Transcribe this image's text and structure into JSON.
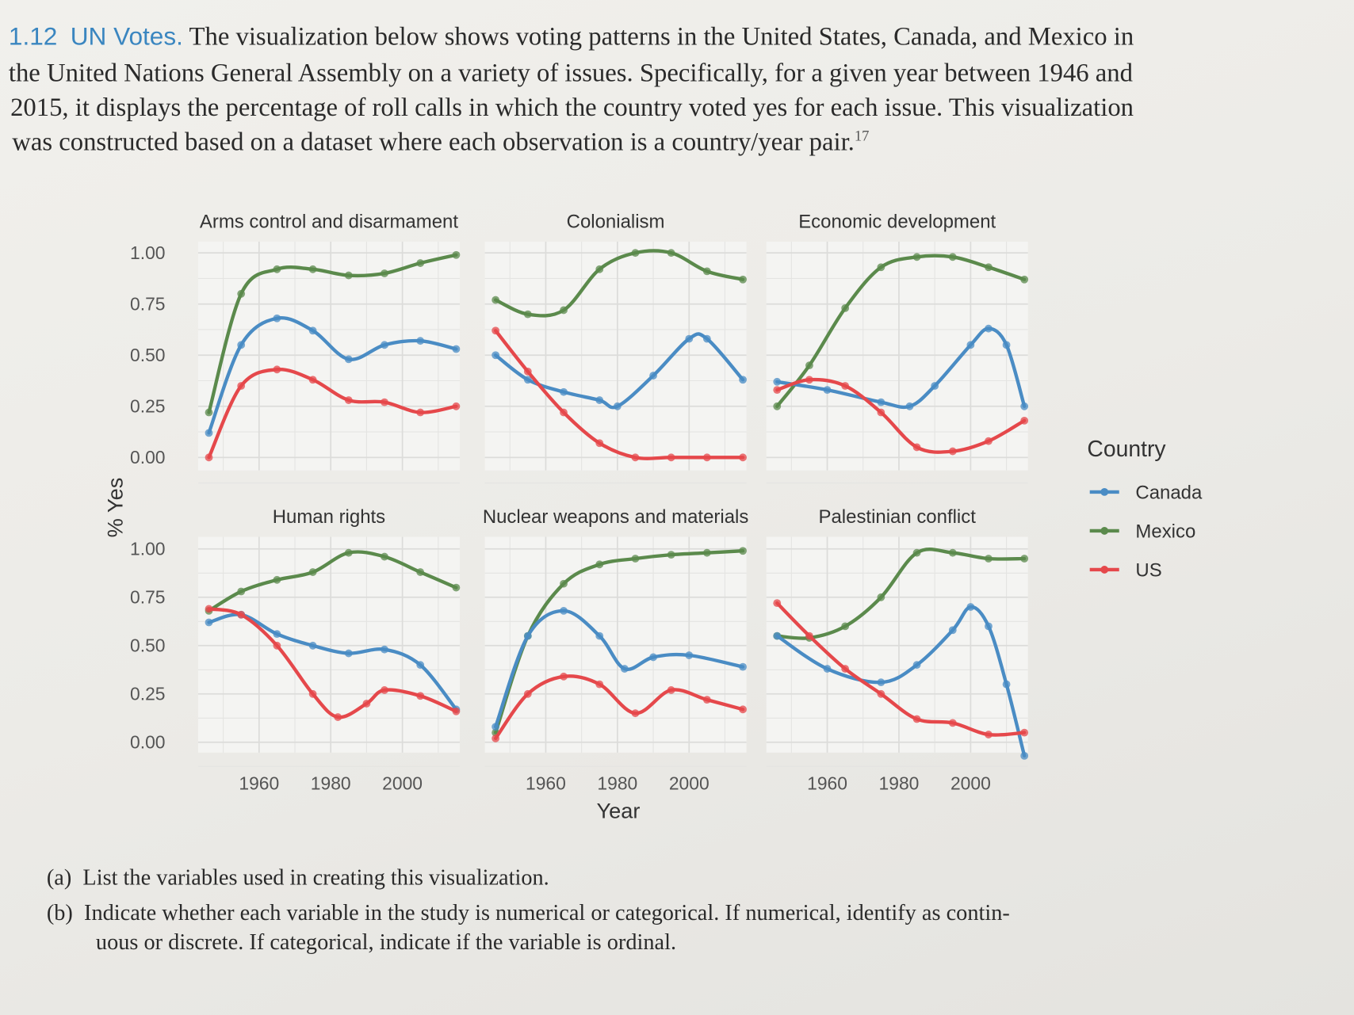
{
  "problem": {
    "number": "1.12",
    "title": "UN Votes.",
    "lines": [
      "The visualization below shows voting patterns in the United States, Canada, and Mexico in",
      "the United Nations General Assembly on a variety of issues. Specifically, for a given year between 1946 and",
      "2015, it displays the percentage of roll calls in which the country voted yes for each issue. This visualization",
      "was constructed based on a dataset where each observation is a country/year pair."
    ],
    "footnote": "17",
    "questions": [
      {
        "label": "(a)",
        "text": "List the variables used in creating this visualization."
      },
      {
        "label": "(b)",
        "text": "Indicate whether each variable in the study is numerical or categorical. If numerical, identify as contin-"
      },
      {
        "label": "",
        "text": "uous or discrete. If categorical, indicate if the variable is ordinal."
      }
    ]
  },
  "chart_data": {
    "type": "line",
    "xlabel": "Year",
    "ylabel": "% Yes",
    "xlim": [
      1943,
      2016
    ],
    "ylim": [
      0,
      1
    ],
    "x_ticks": [
      "1960",
      "1980",
      "2000"
    ],
    "y_ticks": [
      "0.00",
      "0.25",
      "0.50",
      "0.75",
      "1.00"
    ],
    "grid": true,
    "legend": {
      "title": "Country",
      "placement": "right",
      "entries": [
        "Canada",
        "Mexico",
        "US"
      ]
    },
    "colors": {
      "Canada": "#4a8cc4",
      "Mexico": "#5b8a4c",
      "US": "#e5484b"
    },
    "panels": [
      {
        "title": "Arms control and disarmament",
        "series": [
          {
            "name": "Mexico",
            "x": [
              1946,
              1955,
              1965,
              1975,
              1985,
              1995,
              2005,
              2015
            ],
            "y": [
              0.22,
              0.8,
              0.92,
              0.92,
              0.89,
              0.9,
              0.95,
              0.99
            ]
          },
          {
            "name": "Canada",
            "x": [
              1946,
              1955,
              1965,
              1975,
              1985,
              1995,
              2005,
              2015
            ],
            "y": [
              0.12,
              0.55,
              0.68,
              0.62,
              0.48,
              0.55,
              0.57,
              0.53
            ]
          },
          {
            "name": "US",
            "x": [
              1946,
              1955,
              1965,
              1975,
              1985,
              1995,
              2005,
              2015
            ],
            "y": [
              0.0,
              0.35,
              0.43,
              0.38,
              0.28,
              0.27,
              0.22,
              0.25
            ]
          }
        ]
      },
      {
        "title": "Colonialism",
        "series": [
          {
            "name": "Mexico",
            "x": [
              1946,
              1955,
              1965,
              1975,
              1985,
              1995,
              2005,
              2015
            ],
            "y": [
              0.77,
              0.7,
              0.72,
              0.92,
              1.0,
              1.0,
              0.91,
              0.87
            ]
          },
          {
            "name": "Canada",
            "x": [
              1946,
              1955,
              1965,
              1975,
              1980,
              1990,
              2000,
              2005,
              2015
            ],
            "y": [
              0.5,
              0.38,
              0.32,
              0.28,
              0.25,
              0.4,
              0.58,
              0.58,
              0.38
            ]
          },
          {
            "name": "US",
            "x": [
              1946,
              1955,
              1965,
              1975,
              1985,
              1995,
              2005,
              2015
            ],
            "y": [
              0.62,
              0.42,
              0.22,
              0.07,
              0.0,
              0.0,
              0.0,
              0.0
            ]
          }
        ]
      },
      {
        "title": "Economic development",
        "series": [
          {
            "name": "Mexico",
            "x": [
              1946,
              1955,
              1965,
              1975,
              1985,
              1995,
              2005,
              2015
            ],
            "y": [
              0.25,
              0.45,
              0.73,
              0.93,
              0.98,
              0.98,
              0.93,
              0.87
            ]
          },
          {
            "name": "Canada",
            "x": [
              1946,
              1960,
              1975,
              1983,
              1990,
              2000,
              2005,
              2010,
              2015
            ],
            "y": [
              0.37,
              0.33,
              0.27,
              0.25,
              0.35,
              0.55,
              0.63,
              0.55,
              0.25
            ]
          },
          {
            "name": "US",
            "x": [
              1946,
              1955,
              1965,
              1975,
              1985,
              1995,
              2005,
              2015
            ],
            "y": [
              0.33,
              0.38,
              0.35,
              0.22,
              0.05,
              0.03,
              0.08,
              0.18
            ]
          }
        ]
      },
      {
        "title": "Human rights",
        "series": [
          {
            "name": "Mexico",
            "x": [
              1946,
              1955,
              1965,
              1975,
              1985,
              1995,
              2005,
              2015
            ],
            "y": [
              0.68,
              0.78,
              0.84,
              0.88,
              0.98,
              0.96,
              0.88,
              0.8
            ]
          },
          {
            "name": "Canada",
            "x": [
              1946,
              1955,
              1965,
              1975,
              1985,
              1995,
              2005,
              2015
            ],
            "y": [
              0.62,
              0.66,
              0.56,
              0.5,
              0.46,
              0.48,
              0.4,
              0.17
            ]
          },
          {
            "name": "US",
            "x": [
              1946,
              1955,
              1965,
              1975,
              1982,
              1990,
              1995,
              2005,
              2015
            ],
            "y": [
              0.69,
              0.66,
              0.5,
              0.25,
              0.13,
              0.2,
              0.27,
              0.24,
              0.16
            ]
          }
        ]
      },
      {
        "title": "Nuclear weapons and materials",
        "series": [
          {
            "name": "Mexico",
            "x": [
              1946,
              1955,
              1965,
              1975,
              1985,
              1995,
              2005,
              2015
            ],
            "y": [
              0.05,
              0.55,
              0.82,
              0.92,
              0.95,
              0.97,
              0.98,
              0.99
            ]
          },
          {
            "name": "Canada",
            "x": [
              1946,
              1955,
              1965,
              1975,
              1982,
              1990,
              2000,
              2015
            ],
            "y": [
              0.08,
              0.55,
              0.68,
              0.55,
              0.38,
              0.44,
              0.45,
              0.39
            ]
          },
          {
            "name": "US",
            "x": [
              1946,
              1955,
              1965,
              1975,
              1985,
              1995,
              2005,
              2015
            ],
            "y": [
              0.02,
              0.25,
              0.34,
              0.3,
              0.15,
              0.27,
              0.22,
              0.17
            ]
          }
        ]
      },
      {
        "title": "Palestinian conflict",
        "series": [
          {
            "name": "Mexico",
            "x": [
              1946,
              1955,
              1965,
              1975,
              1985,
              1995,
              2005,
              2015
            ],
            "y": [
              0.55,
              0.54,
              0.6,
              0.75,
              0.98,
              0.98,
              0.95,
              0.95
            ]
          },
          {
            "name": "Canada",
            "x": [
              1946,
              1960,
              1975,
              1985,
              1995,
              2000,
              2005,
              2010,
              2015
            ],
            "y": [
              0.55,
              0.38,
              0.31,
              0.4,
              0.58,
              0.7,
              0.6,
              0.3,
              -0.07
            ]
          },
          {
            "name": "US",
            "x": [
              1946,
              1955,
              1965,
              1975,
              1985,
              1995,
              2005,
              2015
            ],
            "y": [
              0.72,
              0.55,
              0.38,
              0.25,
              0.12,
              0.1,
              0.04,
              0.05
            ]
          }
        ]
      }
    ]
  }
}
